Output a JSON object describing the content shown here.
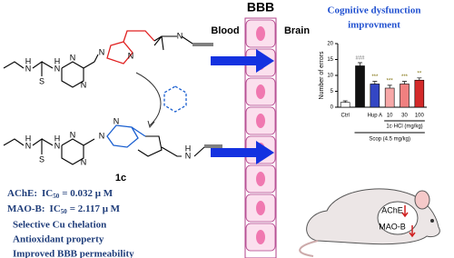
{
  "diagram": {
    "bbb": "BBB",
    "blood": "Blood",
    "brain": "Brain",
    "compound": "1c",
    "title": [
      "Cognitive dysfunction",
      "improvment"
    ],
    "molecule_top": {
      "atoms": [
        "H",
        "N",
        "H",
        "N",
        "S",
        "N",
        "N",
        "N",
        "N",
        "N"
      ]
    },
    "molecule_bottom": {
      "atoms": [
        "H",
        "N",
        "H",
        "N",
        "S",
        "N",
        "N",
        "N",
        "N",
        "N",
        "H"
      ]
    },
    "activities": [
      {
        "target": "AChE:",
        "symbol": "IC",
        "sub": "50",
        "value": "= 0.032  μ M"
      },
      {
        "target": "MAO-B:",
        "symbol": "IC",
        "sub": "50",
        "value": "= 2.117  μ M"
      }
    ],
    "properties": [
      "Selective Cu chelation",
      "Antioxidant property",
      "Improved BBB permeability"
    ],
    "mouse": [
      "AChE",
      "MAO-B"
    ]
  },
  "chart_data": {
    "type": "bar",
    "y_label": "Number of errors",
    "categories": [
      "Ctrl",
      null,
      "Hup A",
      "10",
      "30",
      "100"
    ],
    "values": [
      1.5,
      13,
      7.3,
      6,
      7.3,
      8.5
    ],
    "errors": [
      0.5,
      1,
      0.8,
      0.9,
      0.8,
      0.7
    ],
    "value_labels": [
      null,
      "###",
      "***",
      "***",
      "***",
      "**"
    ],
    "colors": [
      "#ffffff",
      "#111111",
      "#3346c4",
      "#f7a8a8",
      "#f08080",
      "#d42a2a"
    ],
    "groups": [
      "1c·HCl (mg/kg)",
      "Scop (4.5 mg/kg)"
    ],
    "ylim": [
      0,
      20
    ],
    "yticks": [
      0,
      5,
      10,
      15,
      20
    ]
  }
}
